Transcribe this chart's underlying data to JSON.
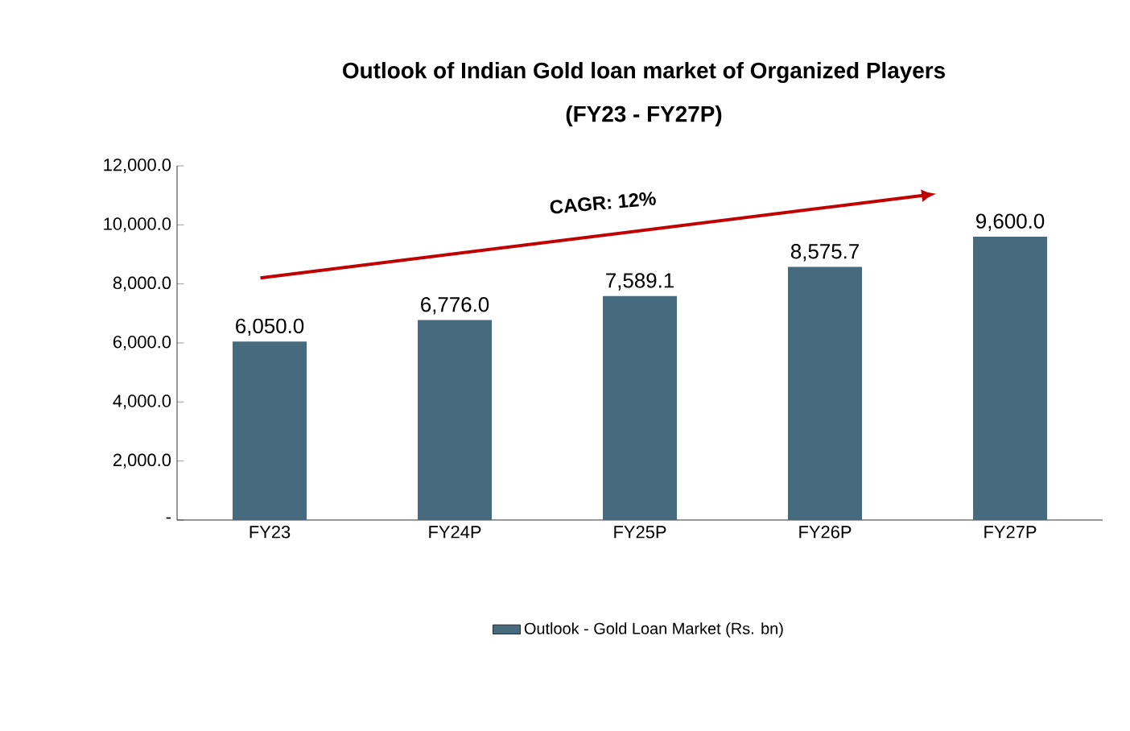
{
  "chart_data": {
    "type": "bar",
    "title": "Outlook of Indian Gold loan market of Organized Players",
    "subtitle": "(FY23 - FY27P)",
    "categories": [
      "FY23",
      "FY24P",
      "FY25P",
      "FY26P",
      "FY27P"
    ],
    "series": [
      {
        "name": "Outlook - Gold Loan Market (Rs. bn)",
        "color": "#466a7e",
        "values": [
          6050.0,
          6776.0,
          7589.1,
          8575.7,
          9600.0
        ],
        "value_labels": [
          "6,050.0",
          "6,776.0",
          "7,589.1",
          "8,575.7",
          "9,600.0"
        ]
      }
    ],
    "ylim": [
      0,
      12000
    ],
    "yticks": [
      {
        "value": 0,
        "label": "-"
      },
      {
        "value": 2000,
        "label": "2,000.0"
      },
      {
        "value": 4000,
        "label": "4,000.0"
      },
      {
        "value": 6000,
        "label": "6,000.0"
      },
      {
        "value": 8000,
        "label": "8,000.0"
      },
      {
        "value": 10000,
        "label": "10,000.0"
      },
      {
        "value": 12000,
        "label": "12,000.0"
      }
    ],
    "annotations": [
      "CAGR: 12%"
    ],
    "legend": "bottom",
    "grid": false
  }
}
